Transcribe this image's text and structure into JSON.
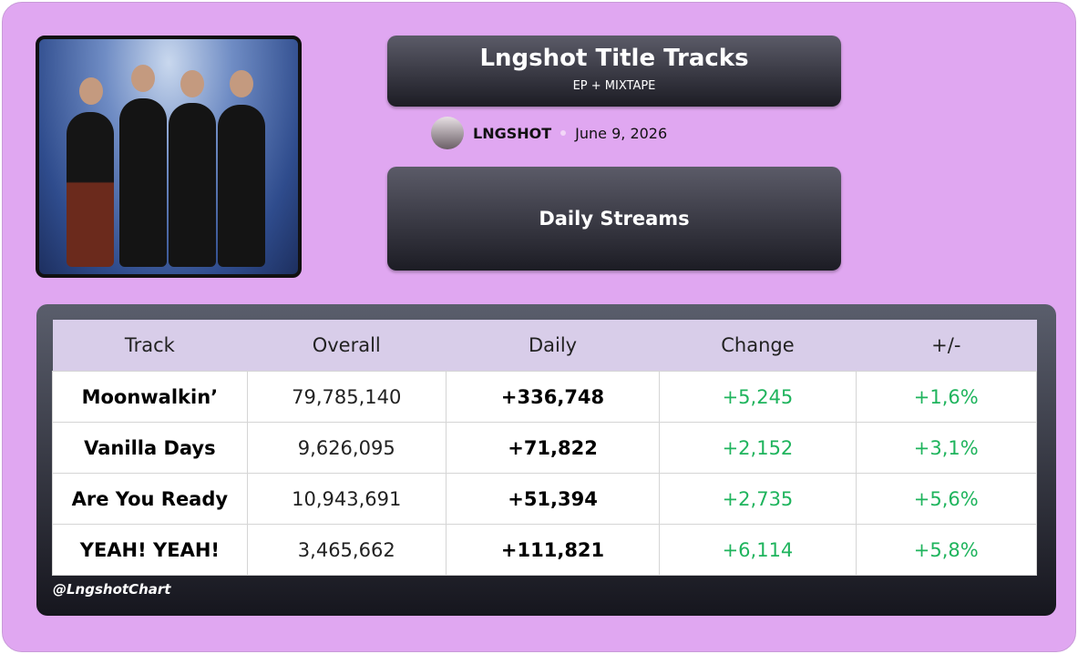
{
  "header": {
    "title": "Lngshot Title Tracks",
    "subtitle": "EP + MIXTAPE",
    "artist": "LNGSHOT",
    "date": "June 9, 2026",
    "section": "Daily Streams"
  },
  "table": {
    "columns": [
      "Track",
      "Overall",
      "Daily",
      "Change",
      "+/-"
    ],
    "rows": [
      [
        "Moonwalkin’",
        "79,785,140",
        "+336,748",
        "+5,245",
        "+1,6%"
      ],
      [
        "Vanilla Days",
        "9,626,095",
        "+71,822",
        "+2,152",
        "+3,1%"
      ],
      [
        "Are You Ready",
        "10,943,691",
        "+51,394",
        "+2,735",
        "+5,6%"
      ],
      [
        "YEAH! YEAH!",
        "3,465,662",
        "+111,821",
        "+6,114",
        "+5,8%"
      ]
    ]
  },
  "footer": {
    "handle": "@LngshotChart"
  }
}
